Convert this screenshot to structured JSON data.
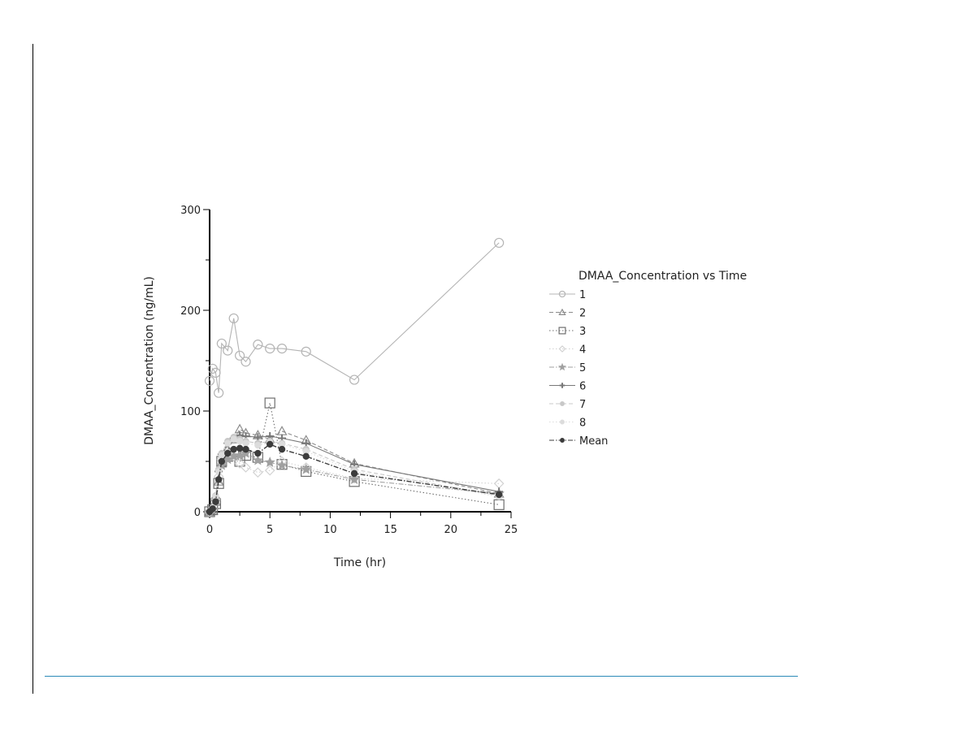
{
  "chart_data": {
    "type": "line",
    "title": "",
    "xlabel": "Time (hr)",
    "ylabel": "DMAA_Concentration (ng/mL)",
    "xlim": [
      0,
      25
    ],
    "ylim": [
      0,
      300
    ],
    "xticks": [
      0,
      5,
      10,
      15,
      20,
      25
    ],
    "yticks": [
      0,
      100,
      200,
      300
    ],
    "grid": false,
    "legend": {
      "title": "DMAA_Concentration vs Time",
      "placement": "right"
    },
    "series": [
      {
        "name": "1",
        "marker": "circle",
        "dash": "solid",
        "color": "#b4b4b4",
        "x": [
          0,
          0.25,
          0.5,
          0.75,
          1,
          1.5,
          2,
          2.5,
          3,
          4,
          5,
          6,
          8,
          12,
          24
        ],
        "y": [
          130,
          142,
          138,
          118,
          167,
          160,
          192,
          155,
          149,
          166,
          162,
          162,
          159,
          131,
          267
        ]
      },
      {
        "name": "2",
        "marker": "triangle",
        "dash": "dashed",
        "color": "#8c8c8c",
        "x": [
          0,
          0.25,
          0.5,
          0.75,
          1,
          1.5,
          2,
          2.5,
          3,
          4,
          5,
          6,
          8,
          12,
          24
        ],
        "y": [
          0,
          2,
          10,
          30,
          48,
          62,
          72,
          82,
          78,
          76,
          72,
          80,
          71,
          48,
          18
        ]
      },
      {
        "name": "3",
        "marker": "square",
        "dash": "dotted",
        "color": "#6e6e6e",
        "x": [
          0,
          0.25,
          0.5,
          0.75,
          1,
          1.5,
          2,
          2.5,
          3,
          4,
          5,
          6,
          8,
          12,
          24
        ],
        "y": [
          0,
          2,
          8,
          28,
          50,
          55,
          58,
          50,
          56,
          54,
          108,
          47,
          40,
          30,
          7
        ]
      },
      {
        "name": "4",
        "marker": "diamond",
        "dash": "dotted",
        "color": "#d2d2d2",
        "x": [
          0,
          0.25,
          0.5,
          0.75,
          1,
          1.5,
          2,
          2.5,
          3,
          4,
          5,
          6,
          8,
          12,
          24
        ],
        "y": [
          0,
          3,
          12,
          35,
          52,
          58,
          55,
          48,
          44,
          39,
          41,
          50,
          44,
          33,
          28
        ]
      },
      {
        "name": "5",
        "marker": "star",
        "dash": "dashdot",
        "color": "#a0a0a0",
        "x": [
          0,
          0.25,
          0.5,
          0.75,
          1,
          1.5,
          2,
          2.5,
          3,
          4,
          5,
          6,
          8,
          12,
          24
        ],
        "y": [
          0,
          2,
          10,
          32,
          46,
          52,
          55,
          56,
          58,
          51,
          49,
          46,
          42,
          32,
          18
        ]
      },
      {
        "name": "6",
        "marker": "plus",
        "dash": "solid",
        "color": "#787878",
        "x": [
          0,
          0.25,
          0.5,
          0.75,
          1,
          1.5,
          2,
          2.5,
          3,
          4,
          5,
          6,
          8,
          12,
          24
        ],
        "y": [
          0,
          3,
          14,
          40,
          57,
          68,
          73,
          76,
          75,
          74,
          75,
          73,
          68,
          47,
          20
        ]
      },
      {
        "name": "7",
        "marker": "circle-filled",
        "dash": "dashed",
        "color": "#c8c8c8",
        "x": [
          0,
          0.25,
          0.5,
          0.75,
          1,
          1.5,
          2,
          2.5,
          3,
          4,
          5,
          6,
          8,
          12,
          24
        ],
        "y": [
          0,
          4,
          16,
          42,
          58,
          70,
          74,
          72,
          70,
          68,
          70,
          68,
          62,
          42,
          16
        ]
      },
      {
        "name": "8",
        "marker": "circle-filled",
        "dash": "dotted",
        "color": "#dcdcdc",
        "x": [
          0,
          0.25,
          0.5,
          0.75,
          1,
          1.5,
          2,
          2.5,
          3,
          4,
          5,
          6,
          8,
          12,
          24
        ],
        "y": [
          0,
          4,
          15,
          40,
          56,
          68,
          72,
          70,
          68,
          66,
          69,
          67,
          60,
          40,
          15
        ]
      },
      {
        "name": "Mean",
        "marker": "circle-filled",
        "dash": "dashdot",
        "color": "#3c3c3c",
        "x": [
          0,
          0.25,
          0.5,
          0.75,
          1,
          1.5,
          2,
          2.5,
          3,
          4,
          5,
          6,
          8,
          12,
          24
        ],
        "y": [
          0,
          3,
          10,
          32,
          50,
          58,
          62,
          63,
          62,
          58,
          67,
          62,
          55,
          38,
          17
        ]
      }
    ]
  }
}
